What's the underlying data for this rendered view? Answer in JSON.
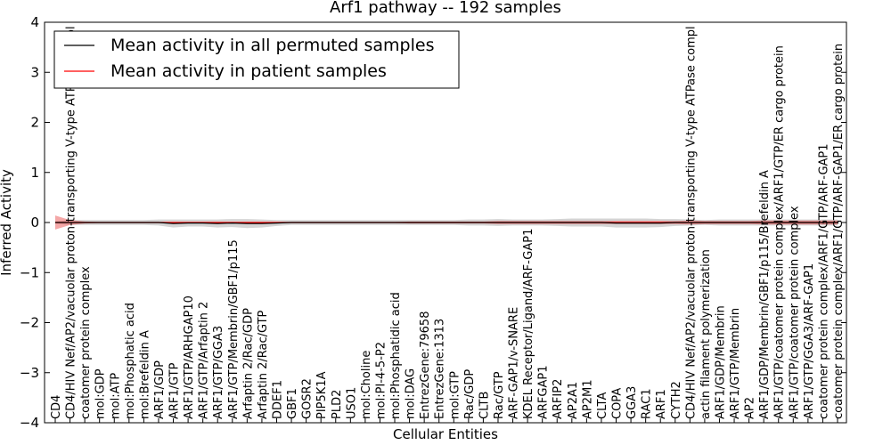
{
  "chart_data": {
    "type": "line",
    "title": "Arf1 pathway -- 192 samples",
    "xlabel": "Cellular Entities",
    "ylabel": "Inferred Activity",
    "ylim": [
      -4,
      4
    ],
    "yticks": [
      4,
      3,
      2,
      1,
      0,
      -1,
      -2,
      -3,
      -4
    ],
    "ytick_labels": [
      "4",
      "3",
      "2",
      "1",
      "0",
      "−1",
      "−2",
      "−3",
      "−4"
    ],
    "legend": {
      "position": "top-left",
      "entries": [
        {
          "label": "Mean activity in all permuted samples",
          "color": "#000000"
        },
        {
          "label": "Mean activity in patient samples",
          "color": "#ff0000"
        }
      ]
    },
    "categories": [
      "CD4",
      "CD4/HIV Nef/AP2/vacuolar proton-transporting V-type ATPase compl",
      "coatomer protein complex",
      "mol:GDP",
      "mol:ATP",
      "mol:Phosphatic acid",
      "mol:Brefeldin A",
      "ARF1/GDP",
      "ARF1/GTP",
      "ARF1/GTP/ARHGAP10",
      "ARF1/GTP/Arfaptin 2",
      "ARF1/GTP/GGA3",
      "ARF1/GTP/Membrin/GBF1/p115",
      "Arfaptin 2/Rac/GDP",
      "Arfaptin 2/Rac/GTP",
      "DDEF1",
      "GBF1",
      "GOSR2",
      "PIP5K1A",
      "PLD2",
      "USO1",
      "mol:Choline",
      "mol:PI-4-5-P2",
      "mol:Phosphatidic acid",
      "mol:DAG",
      "EntrezGene:79658",
      "EntrezGene:1313",
      "mol:GTP",
      "Rac/GDP",
      "CLTB",
      "Rac/GTP",
      "ARF-GAP1/v-SNARE",
      "KDEL Receptor/Ligand/ARF-GAP1",
      "ARFGAP1",
      "ARFIP2",
      "AP2A1",
      "AP2M1",
      "CLTA",
      "COPA",
      "GGA3",
      "RAC1",
      "ARF1",
      "CYTH2",
      "CD4/HIV Nef/AP2/vacuolar proton-transporting V-type ATPase compl",
      "actin filament polymerization",
      "ARF1/GDP/Membrin",
      "ARF1/GTP/Membrin",
      "AP2",
      "ARF1/GDP/Membrin/GBF1/p115/Brefeldin A",
      "ARF1/GTP/coatomer protein complex/ARF1/GTP/ER cargo protein",
      "ARF1/GTP/coatomer protein complex",
      "ARF1/GTP/GGA3/ARF-GAP1",
      "coatomer protein complex/ARF1/GTP/ARF-GAP1",
      "coatomer protein complex/ARF1/GTP/ARF-GAP1/ER cargo protein"
    ],
    "series": [
      {
        "name": "Mean activity in all permuted samples",
        "color": "#000000",
        "values": [
          0.0,
          0.0,
          0.0,
          0.0,
          0.0,
          0.0,
          0.0,
          0.0,
          -0.02,
          -0.01,
          -0.01,
          -0.02,
          -0.01,
          -0.02,
          -0.02,
          -0.01,
          0.0,
          0.0,
          0.0,
          0.0,
          0.0,
          0.0,
          0.0,
          0.0,
          0.0,
          0.0,
          0.0,
          0.0,
          0.0,
          0.0,
          0.0,
          0.0,
          0.0,
          0.0,
          0.0,
          0.0,
          0.0,
          0.0,
          -0.01,
          -0.01,
          -0.01,
          -0.01,
          0.0,
          0.0,
          0.0,
          0.0,
          0.0,
          0.0,
          0.0,
          0.0,
          0.0,
          0.0,
          0.0,
          0.0
        ],
        "band": [
          0.02,
          0.05,
          0.05,
          0.05,
          0.05,
          0.05,
          0.05,
          0.06,
          0.08,
          0.07,
          0.07,
          0.08,
          0.08,
          0.09,
          0.08,
          0.06,
          0.05,
          0.05,
          0.05,
          0.05,
          0.05,
          0.05,
          0.05,
          0.05,
          0.05,
          0.05,
          0.05,
          0.05,
          0.06,
          0.06,
          0.07,
          0.06,
          0.06,
          0.06,
          0.07,
          0.08,
          0.08,
          0.08,
          0.09,
          0.09,
          0.09,
          0.08,
          0.07,
          0.06,
          0.05,
          0.06,
          0.06,
          0.06,
          0.06,
          0.06,
          0.06,
          0.06,
          0.06,
          0.06
        ]
      },
      {
        "name": "Mean activity in patient samples",
        "color": "#ff0000",
        "values": [
          0.0,
          0.0,
          0.0,
          0.0,
          0.0,
          0.0,
          0.0,
          0.0,
          0.0,
          0.0,
          0.0,
          0.0,
          0.0,
          0.0,
          0.0,
          0.0,
          0.0,
          0.0,
          0.0,
          0.0,
          0.0,
          0.0,
          0.0,
          0.0,
          0.0,
          0.0,
          0.0,
          0.0,
          0.0,
          0.0,
          0.0,
          0.0,
          0.0,
          0.0,
          0.0,
          0.0,
          0.0,
          0.0,
          0.0,
          0.0,
          0.0,
          0.0,
          0.0,
          0.0,
          0.0,
          0.0,
          0.0,
          0.0,
          0.0,
          0.0,
          0.0,
          0.0,
          0.0,
          0.0
        ],
        "band": [
          0.14,
          0.05,
          0.02,
          0.01,
          0.01,
          0.01,
          0.01,
          0.01,
          0.01,
          0.01,
          0.01,
          0.01,
          0.01,
          0.01,
          0.01,
          0.01,
          0.01,
          0.01,
          0.01,
          0.01,
          0.01,
          0.01,
          0.01,
          0.01,
          0.02,
          0.02,
          0.02,
          0.02,
          0.02,
          0.02,
          0.03,
          0.03,
          0.03,
          0.03,
          0.03,
          0.03,
          0.03,
          0.03,
          0.03,
          0.03,
          0.03,
          0.03,
          0.03,
          0.04,
          0.03,
          0.03,
          0.03,
          0.03,
          0.04,
          0.04,
          0.04,
          0.04,
          0.04,
          0.04
        ]
      }
    ]
  }
}
